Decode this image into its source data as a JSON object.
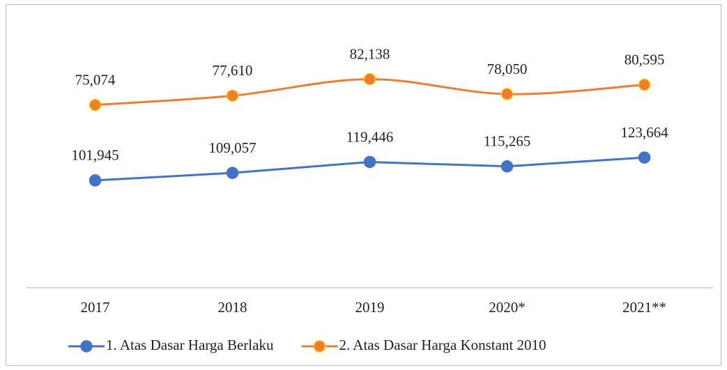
{
  "chart_data": {
    "type": "line",
    "categories": [
      "2017",
      "2018",
      "2019",
      "2020*",
      "2021**"
    ],
    "series": [
      {
        "name": "1. Atas Dasar Harga Berlaku",
        "color": "#4472c4",
        "marker_edge": "#4472c4",
        "smooth": false,
        "values": [
          101945,
          109057,
          119446,
          115265,
          123664
        ],
        "value_labels": [
          "101,945",
          "109,057",
          "119,446",
          "115,265",
          "123,664"
        ]
      },
      {
        "name": "2. Atas Dasar Harga Konstant 2010",
        "color": "#ed7d31",
        "marker_edge": "#ffc000",
        "smooth": true,
        "axis": "y2",
        "values": [
          75074,
          77610,
          82138,
          78050,
          80595
        ],
        "value_labels": [
          "75,074",
          "77,610",
          "82,138",
          "78,050",
          "80,595"
        ]
      }
    ],
    "ylim": [
      0,
      260000
    ],
    "y2lim": [
      25000,
      100000
    ],
    "legend": "bottom"
  }
}
